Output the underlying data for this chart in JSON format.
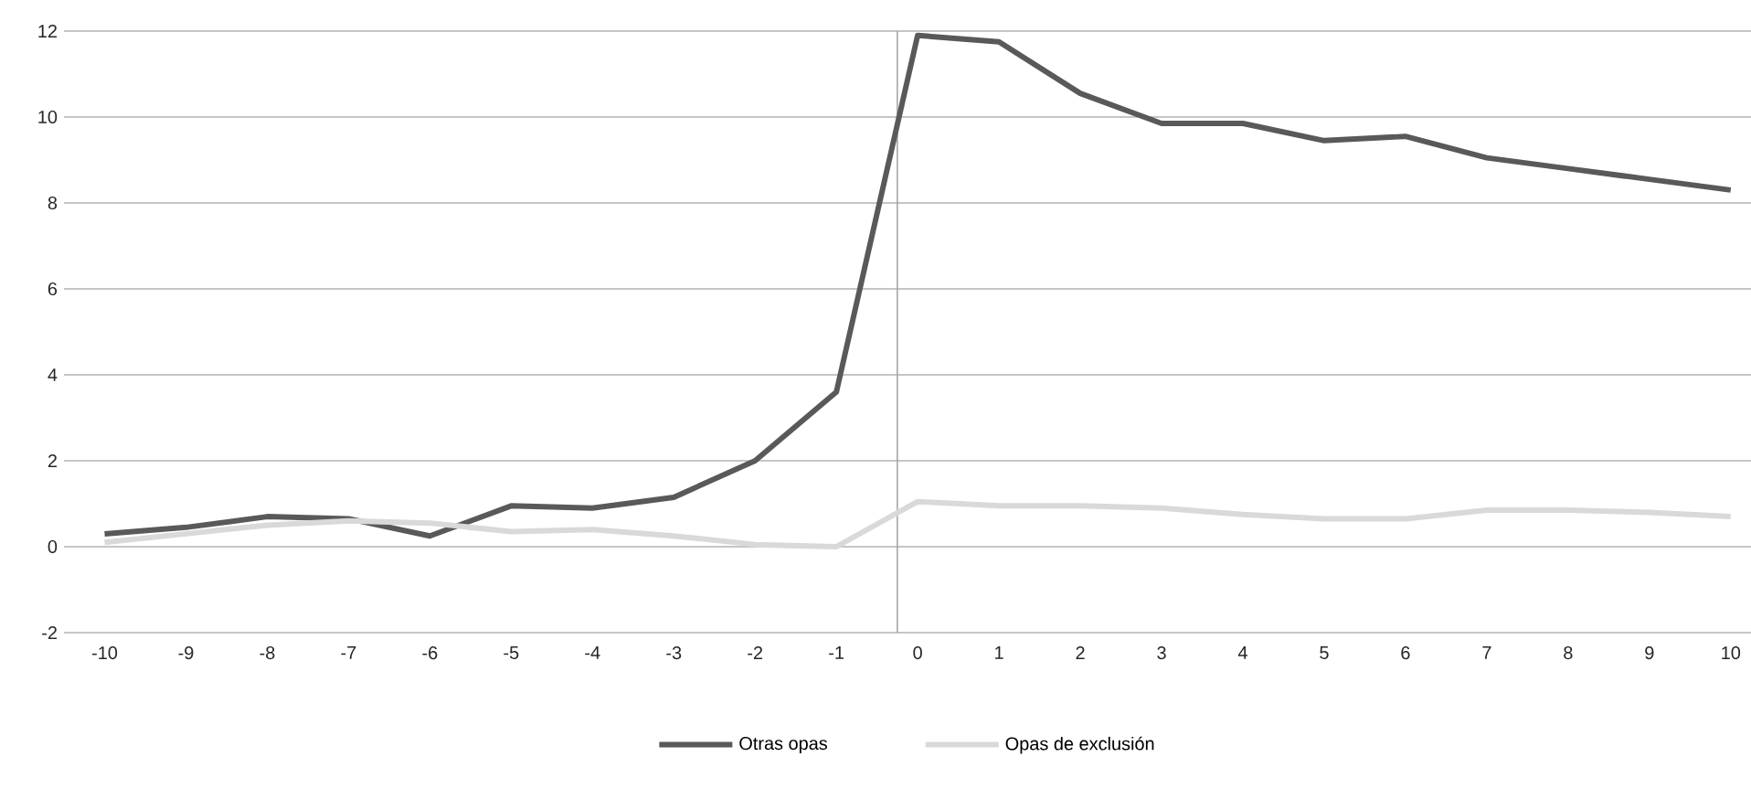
{
  "chart_data": {
    "type": "line",
    "x": [
      -10,
      -9,
      -8,
      -7,
      -6,
      -5,
      -4,
      -3,
      -2,
      -1,
      0,
      1,
      2,
      3,
      4,
      5,
      6,
      7,
      8,
      9,
      10
    ],
    "xlim": [
      -10.5,
      10.25
    ],
    "xticks": [
      -10,
      -9,
      -8,
      -7,
      -6,
      -5,
      -4,
      -3,
      -2,
      -1,
      0,
      1,
      2,
      3,
      4,
      5,
      6,
      7,
      8,
      9,
      10
    ],
    "ylim": [
      -2,
      12
    ],
    "yticks": [
      -2,
      0,
      2,
      4,
      6,
      8,
      10,
      12
    ],
    "grid": "y",
    "legend": "bottom",
    "marker": "none",
    "line_style": "solid",
    "ref_lines": [
      {
        "axis": "x",
        "value": -0.25,
        "color": "#a6a6a6"
      }
    ],
    "series": [
      {
        "name": "Otras opas",
        "color": "#595959",
        "values": [
          0.3,
          0.45,
          0.7,
          0.65,
          0.25,
          0.95,
          0.9,
          1.15,
          2.0,
          3.6,
          11.9,
          11.75,
          10.55,
          9.85,
          9.85,
          9.45,
          9.55,
          9.05,
          8.8,
          8.55,
          8.3
        ]
      },
      {
        "name": "Opas de exclusión",
        "color": "#d9d9d9",
        "values": [
          0.1,
          0.3,
          0.5,
          0.6,
          0.55,
          0.35,
          0.4,
          0.25,
          0.05,
          0.0,
          1.05,
          0.95,
          0.95,
          0.9,
          0.75,
          0.65,
          0.65,
          0.85,
          0.85,
          0.8,
          0.7
        ]
      }
    ]
  }
}
